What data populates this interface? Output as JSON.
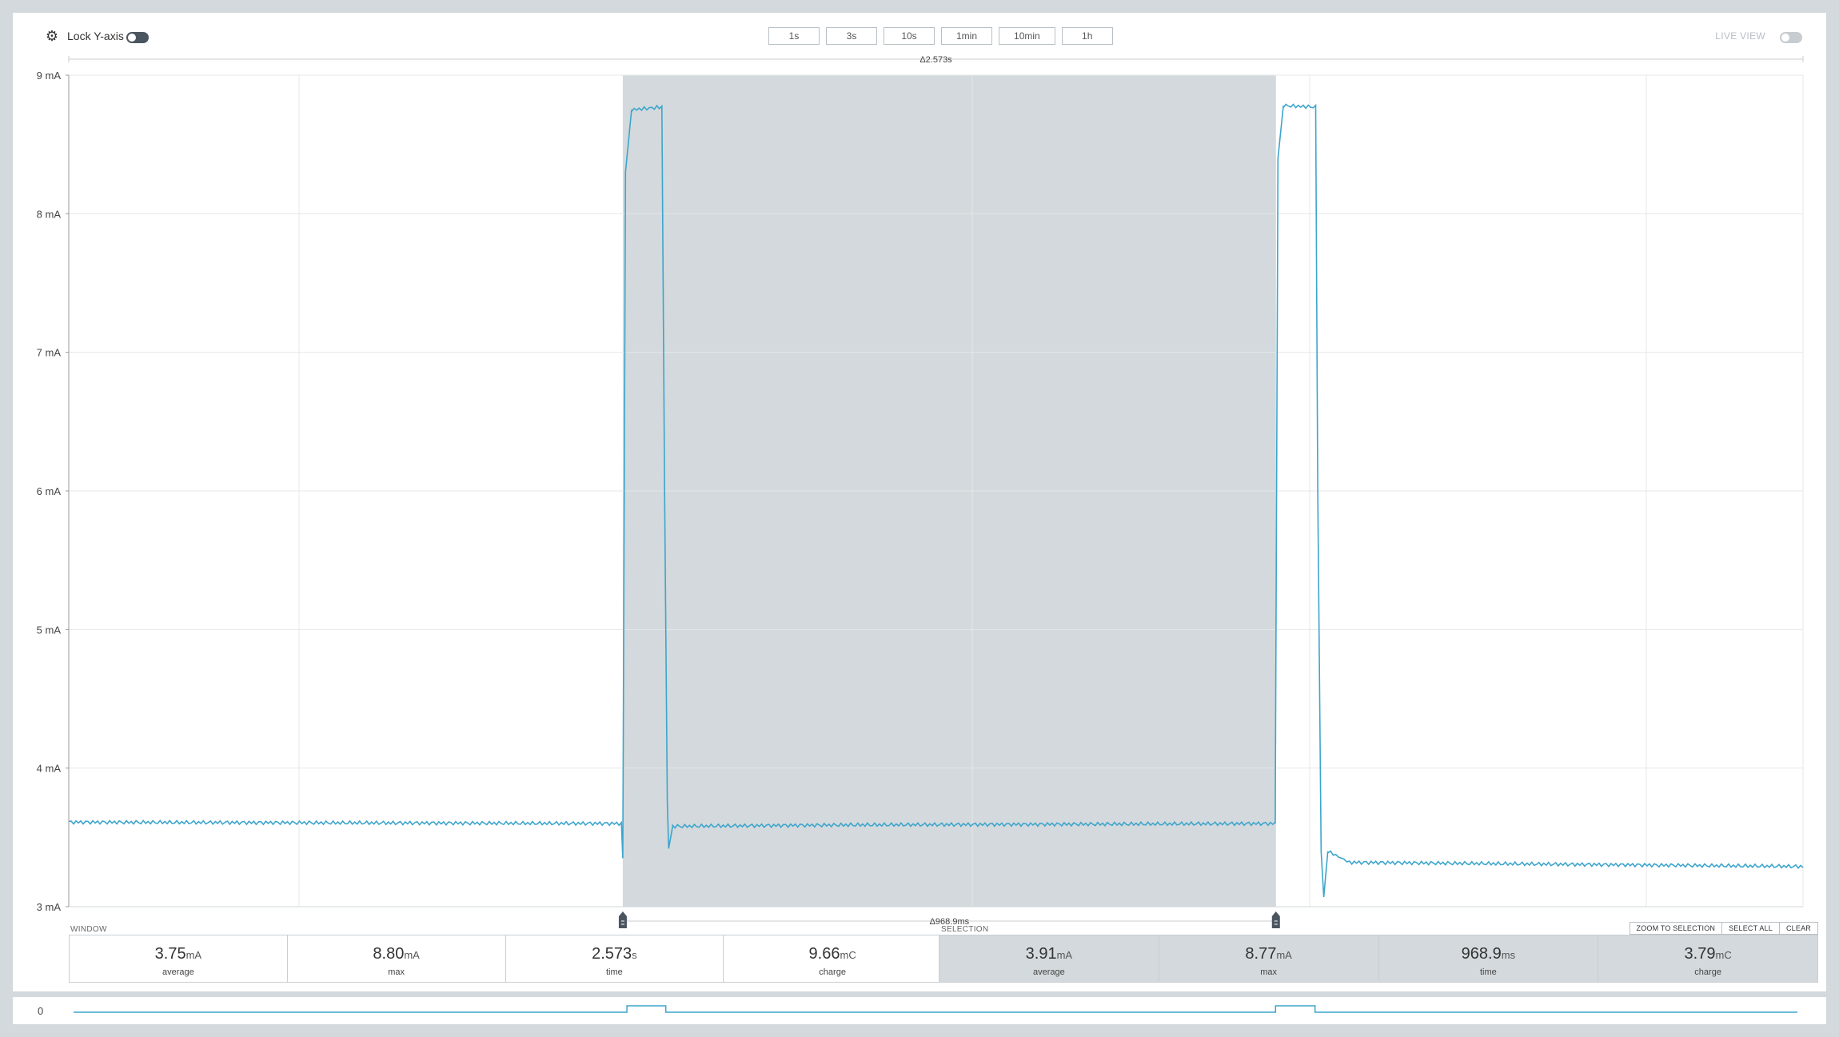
{
  "toolbar": {
    "settings_icon": "gear-icon",
    "lock_y_axis_label": "Lock Y-axis",
    "lock_y_axis_on": true,
    "window_buttons": [
      "1s",
      "3s",
      "10s",
      "1min",
      "10min",
      "1h"
    ],
    "live_view_label": "LIVE VIEW",
    "live_view_on": false
  },
  "chart": {
    "window_duration_label": "Δ2.573s",
    "selection_duration_label": "Δ968.9ms",
    "y_tick_labels": [
      "9 mA",
      "8 mA",
      "7 mA",
      "6 mA",
      "5 mA",
      "4 mA",
      "3 mA"
    ],
    "selection_color": "#d3d9dc",
    "line_color": "#3da5cc"
  },
  "chart_data": {
    "type": "line",
    "title": "",
    "xlabel": "",
    "ylabel": "",
    "ylim": [
      3,
      9
    ],
    "xlim": [
      0,
      2.573
    ],
    "grid": true,
    "series": [
      {
        "values": [
          {
            "x": 0.0,
            "y": 3.61
          },
          {
            "x": 0.82,
            "y": 3.6
          },
          {
            "x": 0.822,
            "y": 3.35
          },
          {
            "x": 0.826,
            "y": 8.3
          },
          {
            "x": 0.835,
            "y": 8.75
          },
          {
            "x": 0.88,
            "y": 8.77
          },
          {
            "x": 0.884,
            "y": 6.0
          },
          {
            "x": 0.888,
            "y": 3.75
          },
          {
            "x": 0.89,
            "y": 3.42
          },
          {
            "x": 0.896,
            "y": 3.58
          },
          {
            "x": 1.16,
            "y": 3.59
          },
          {
            "x": 1.79,
            "y": 3.6
          },
          {
            "x": 1.794,
            "y": 8.4
          },
          {
            "x": 1.802,
            "y": 8.78
          },
          {
            "x": 1.85,
            "y": 8.77
          },
          {
            "x": 1.853,
            "y": 5.99
          },
          {
            "x": 1.858,
            "y": 3.4
          },
          {
            "x": 1.862,
            "y": 3.07
          },
          {
            "x": 1.868,
            "y": 3.4
          },
          {
            "x": 1.9,
            "y": 3.32
          },
          {
            "x": 2.573,
            "y": 3.29
          }
        ]
      }
    ],
    "selection": {
      "start": 0.822,
      "end": 1.791
    }
  },
  "window_stats": {
    "label": "WINDOW",
    "items": [
      {
        "value": "3.75",
        "unit": "mA",
        "caption": "average"
      },
      {
        "value": "8.80",
        "unit": "mA",
        "caption": "max"
      },
      {
        "value": "2.573",
        "unit": "s",
        "caption": "time"
      },
      {
        "value": "9.66",
        "unit": "mC",
        "caption": "charge"
      }
    ]
  },
  "selection_stats": {
    "label": "SELECTION",
    "buttons": [
      "ZOOM TO SELECTION",
      "SELECT ALL",
      "CLEAR"
    ],
    "items": [
      {
        "value": "3.91",
        "unit": "mA",
        "caption": "average"
      },
      {
        "value": "8.77",
        "unit": "mA",
        "caption": "max"
      },
      {
        "value": "968.9",
        "unit": "ms",
        "caption": "time"
      },
      {
        "value": "3.79",
        "unit": "mC",
        "caption": "charge"
      }
    ]
  },
  "minimap": {
    "zero_label": "0"
  }
}
